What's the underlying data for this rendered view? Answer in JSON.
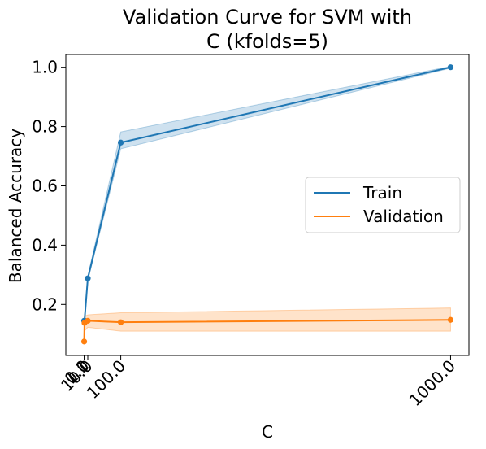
{
  "chart_data": {
    "type": "line",
    "title_lines": [
      "Validation Curve for SVM with",
      "C (kfolds=5)"
    ],
    "xlabel": "C",
    "ylabel": "Balanced Accuracy",
    "x": [
      0.1,
      1.0,
      10.0,
      100.0,
      1000.0
    ],
    "xticks": [
      0.1,
      1.0,
      10.0,
      100.0,
      1000.0
    ],
    "xtick_labels": [
      "0.1",
      "1.0",
      "10.0",
      "100.0",
      "1000.0"
    ],
    "xlim": [
      -49.9,
      1050.0
    ],
    "yticks": [
      0.2,
      0.4,
      0.6,
      0.8,
      1.0
    ],
    "ytick_labels": [
      "0.2",
      "0.4",
      "0.6",
      "0.8",
      "1.0"
    ],
    "ylim": [
      0.028,
      1.043
    ],
    "grid": false,
    "legend_position": "center-right",
    "series": [
      {
        "name": "Train",
        "color": "#1f77b4",
        "values": [
          0.145,
          0.145,
          0.288,
          0.746,
          1.0
        ],
        "lower": [
          0.14,
          0.14,
          0.28,
          0.725,
          0.997
        ],
        "upper": [
          0.15,
          0.15,
          0.296,
          0.782,
          1.003
        ]
      },
      {
        "name": "Validation",
        "color": "#ff7f0e",
        "values": [
          0.075,
          0.138,
          0.145,
          0.14,
          0.148
        ],
        "lower": [
          0.075,
          0.11,
          0.123,
          0.11,
          0.11
        ],
        "upper": [
          0.075,
          0.16,
          0.165,
          0.172,
          0.188
        ]
      }
    ]
  }
}
